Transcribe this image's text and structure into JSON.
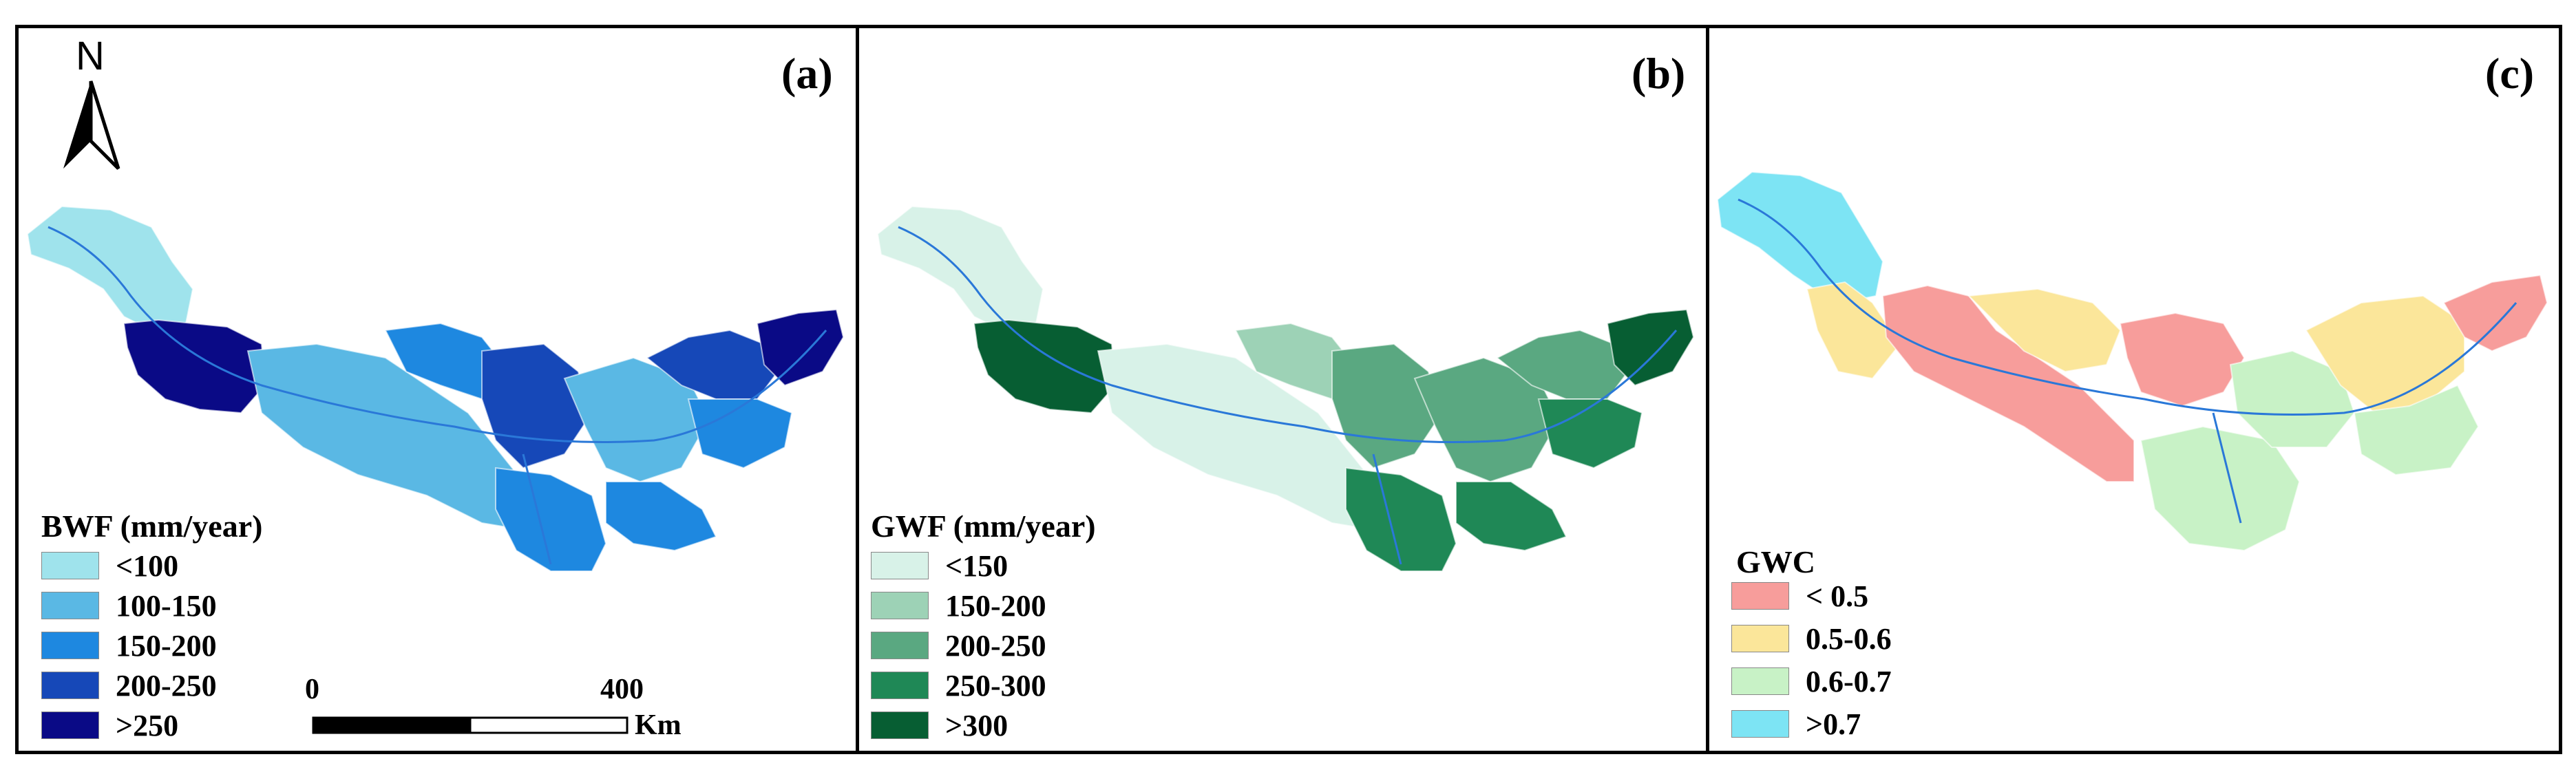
{
  "panels": [
    {
      "label": "(a)",
      "legend_title": "BWF (mm/year)",
      "legend": [
        {
          "text": "<100",
          "color": "#9fe3ec"
        },
        {
          "text": "100-150",
          "color": "#5ab8e4"
        },
        {
          "text": "150-200",
          "color": "#1e88e0"
        },
        {
          "text": "200-250",
          "color": "#1648b8"
        },
        {
          "text": ">250",
          "color": "#0a0a86"
        }
      ]
    },
    {
      "label": "(b)",
      "legend_title": "GWF (mm/year)",
      "legend": [
        {
          "text": "<150",
          "color": "#d8f2e8"
        },
        {
          "text": "150-200",
          "color": "#9dd2b6"
        },
        {
          "text": "200-250",
          "color": "#5aa881"
        },
        {
          "text": "250-300",
          "color": "#1f8856"
        },
        {
          "text": ">300",
          "color": "#075e33"
        }
      ]
    },
    {
      "label": "(c)",
      "legend_title": "GWC",
      "legend": [
        {
          "text": "< 0.5",
          "color": "#f79d9b"
        },
        {
          "text": "0.5-0.6",
          "color": "#fbe69a"
        },
        {
          "text": "0.6-0.7",
          "color": "#c8f2c6"
        },
        {
          "text": ">0.7",
          "color": "#7de4f4"
        }
      ]
    }
  ],
  "north_label": "N",
  "scale_bar": {
    "start": "0",
    "end": "400",
    "unit": "Km"
  },
  "river_color": "#2a78d8"
}
